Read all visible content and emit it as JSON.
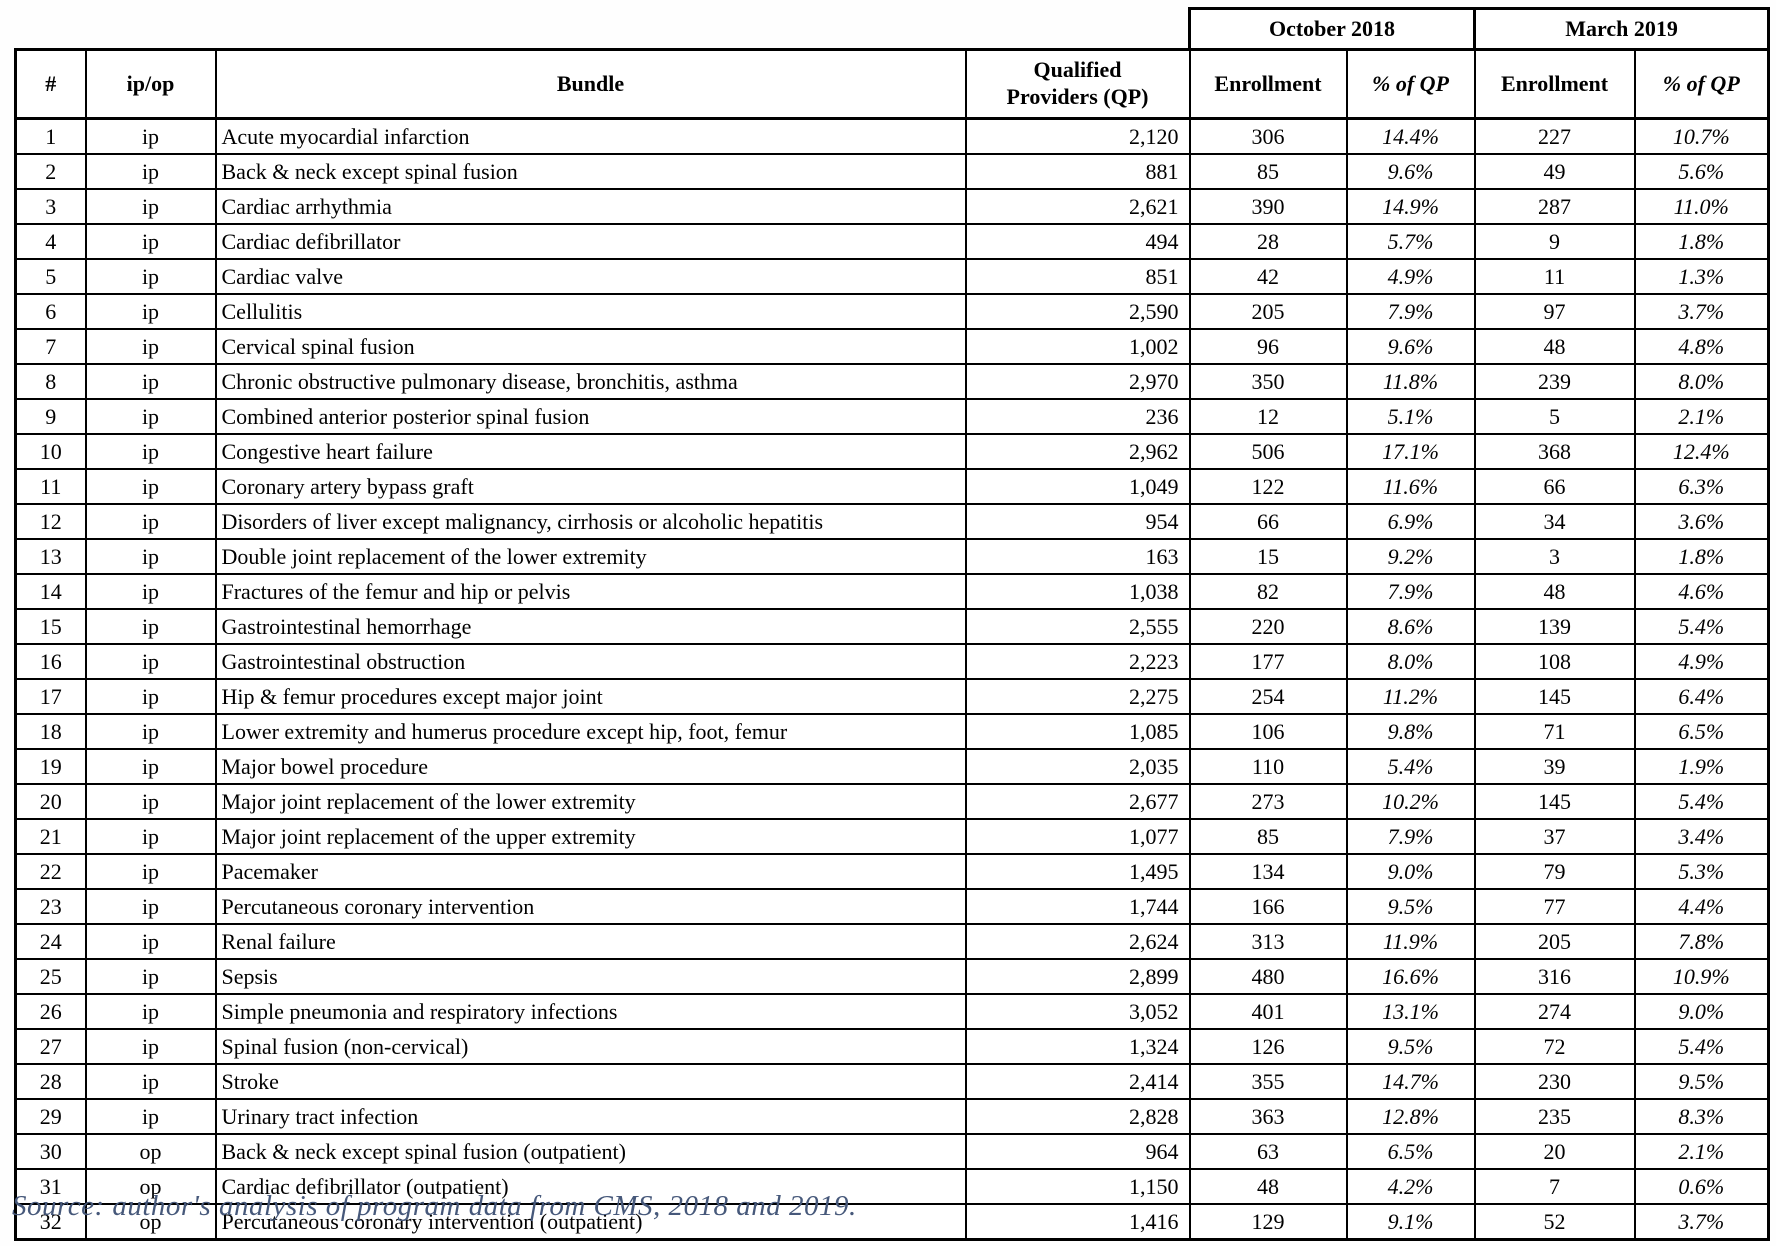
{
  "table": {
    "span_headers": {
      "october": "October 2018",
      "march": "March 2019"
    },
    "columns": {
      "num": "#",
      "ipop": "ip/op",
      "bundle": "Bundle",
      "qp_line1": "Qualified",
      "qp_line2": "Providers (QP)",
      "enrollment": "Enrollment",
      "pct_of_qp": "% of QP"
    },
    "rows": [
      {
        "num": "1",
        "ipop": "ip",
        "bundle": "Acute myocardial infarction",
        "qp": "2,120",
        "oct_enrollment": "306",
        "oct_pct": "14.4%",
        "mar_enrollment": "227",
        "mar_pct": "10.7%"
      },
      {
        "num": "2",
        "ipop": "ip",
        "bundle": "Back & neck except spinal fusion",
        "qp": "881",
        "oct_enrollment": "85",
        "oct_pct": "9.6%",
        "mar_enrollment": "49",
        "mar_pct": "5.6%"
      },
      {
        "num": "3",
        "ipop": "ip",
        "bundle": "Cardiac arrhythmia",
        "qp": "2,621",
        "oct_enrollment": "390",
        "oct_pct": "14.9%",
        "mar_enrollment": "287",
        "mar_pct": "11.0%"
      },
      {
        "num": "4",
        "ipop": "ip",
        "bundle": "Cardiac defibrillator",
        "qp": "494",
        "oct_enrollment": "28",
        "oct_pct": "5.7%",
        "mar_enrollment": "9",
        "mar_pct": "1.8%"
      },
      {
        "num": "5",
        "ipop": "ip",
        "bundle": "Cardiac valve",
        "qp": "851",
        "oct_enrollment": "42",
        "oct_pct": "4.9%",
        "mar_enrollment": "11",
        "mar_pct": "1.3%"
      },
      {
        "num": "6",
        "ipop": "ip",
        "bundle": "Cellulitis",
        "qp": "2,590",
        "oct_enrollment": "205",
        "oct_pct": "7.9%",
        "mar_enrollment": "97",
        "mar_pct": "3.7%"
      },
      {
        "num": "7",
        "ipop": "ip",
        "bundle": "Cervical spinal fusion",
        "qp": "1,002",
        "oct_enrollment": "96",
        "oct_pct": "9.6%",
        "mar_enrollment": "48",
        "mar_pct": "4.8%"
      },
      {
        "num": "8",
        "ipop": "ip",
        "bundle": "Chronic obstructive pulmonary disease, bronchitis, asthma",
        "qp": "2,970",
        "oct_enrollment": "350",
        "oct_pct": "11.8%",
        "mar_enrollment": "239",
        "mar_pct": "8.0%"
      },
      {
        "num": "9",
        "ipop": "ip",
        "bundle": "Combined anterior posterior spinal fusion",
        "qp": "236",
        "oct_enrollment": "12",
        "oct_pct": "5.1%",
        "mar_enrollment": "5",
        "mar_pct": "2.1%"
      },
      {
        "num": "10",
        "ipop": "ip",
        "bundle": "Congestive heart failure",
        "qp": "2,962",
        "oct_enrollment": "506",
        "oct_pct": "17.1%",
        "mar_enrollment": "368",
        "mar_pct": "12.4%"
      },
      {
        "num": "11",
        "ipop": "ip",
        "bundle": "Coronary artery bypass graft",
        "qp": "1,049",
        "oct_enrollment": "122",
        "oct_pct": "11.6%",
        "mar_enrollment": "66",
        "mar_pct": "6.3%"
      },
      {
        "num": "12",
        "ipop": "ip",
        "bundle": "Disorders of liver except malignancy, cirrhosis or alcoholic hepatitis",
        "qp": "954",
        "oct_enrollment": "66",
        "oct_pct": "6.9%",
        "mar_enrollment": "34",
        "mar_pct": "3.6%"
      },
      {
        "num": "13",
        "ipop": "ip",
        "bundle": "Double joint replacement of the lower extremity",
        "qp": "163",
        "oct_enrollment": "15",
        "oct_pct": "9.2%",
        "mar_enrollment": "3",
        "mar_pct": "1.8%"
      },
      {
        "num": "14",
        "ipop": "ip",
        "bundle": "Fractures of the femur and hip or pelvis",
        "qp": "1,038",
        "oct_enrollment": "82",
        "oct_pct": "7.9%",
        "mar_enrollment": "48",
        "mar_pct": "4.6%"
      },
      {
        "num": "15",
        "ipop": "ip",
        "bundle": "Gastrointestinal hemorrhage",
        "qp": "2,555",
        "oct_enrollment": "220",
        "oct_pct": "8.6%",
        "mar_enrollment": "139",
        "mar_pct": "5.4%"
      },
      {
        "num": "16",
        "ipop": "ip",
        "bundle": "Gastrointestinal obstruction",
        "qp": "2,223",
        "oct_enrollment": "177",
        "oct_pct": "8.0%",
        "mar_enrollment": "108",
        "mar_pct": "4.9%"
      },
      {
        "num": "17",
        "ipop": "ip",
        "bundle": "Hip & femur procedures except major joint",
        "qp": "2,275",
        "oct_enrollment": "254",
        "oct_pct": "11.2%",
        "mar_enrollment": "145",
        "mar_pct": "6.4%"
      },
      {
        "num": "18",
        "ipop": "ip",
        "bundle": "Lower extremity and humerus procedure except hip, foot, femur",
        "qp": "1,085",
        "oct_enrollment": "106",
        "oct_pct": "9.8%",
        "mar_enrollment": "71",
        "mar_pct": "6.5%"
      },
      {
        "num": "19",
        "ipop": "ip",
        "bundle": "Major bowel procedure",
        "qp": "2,035",
        "oct_enrollment": "110",
        "oct_pct": "5.4%",
        "mar_enrollment": "39",
        "mar_pct": "1.9%"
      },
      {
        "num": "20",
        "ipop": "ip",
        "bundle": "Major joint replacement of the lower extremity",
        "qp": "2,677",
        "oct_enrollment": "273",
        "oct_pct": "10.2%",
        "mar_enrollment": "145",
        "mar_pct": "5.4%"
      },
      {
        "num": "21",
        "ipop": "ip",
        "bundle": "Major joint replacement of the upper extremity",
        "qp": "1,077",
        "oct_enrollment": "85",
        "oct_pct": "7.9%",
        "mar_enrollment": "37",
        "mar_pct": "3.4%"
      },
      {
        "num": "22",
        "ipop": "ip",
        "bundle": "Pacemaker",
        "qp": "1,495",
        "oct_enrollment": "134",
        "oct_pct": "9.0%",
        "mar_enrollment": "79",
        "mar_pct": "5.3%"
      },
      {
        "num": "23",
        "ipop": "ip",
        "bundle": "Percutaneous coronary intervention",
        "qp": "1,744",
        "oct_enrollment": "166",
        "oct_pct": "9.5%",
        "mar_enrollment": "77",
        "mar_pct": "4.4%"
      },
      {
        "num": "24",
        "ipop": "ip",
        "bundle": "Renal failure",
        "qp": "2,624",
        "oct_enrollment": "313",
        "oct_pct": "11.9%",
        "mar_enrollment": "205",
        "mar_pct": "7.8%"
      },
      {
        "num": "25",
        "ipop": "ip",
        "bundle": "Sepsis",
        "qp": "2,899",
        "oct_enrollment": "480",
        "oct_pct": "16.6%",
        "mar_enrollment": "316",
        "mar_pct": "10.9%"
      },
      {
        "num": "26",
        "ipop": "ip",
        "bundle": "Simple pneumonia and respiratory infections",
        "qp": "3,052",
        "oct_enrollment": "401",
        "oct_pct": "13.1%",
        "mar_enrollment": "274",
        "mar_pct": "9.0%"
      },
      {
        "num": "27",
        "ipop": "ip",
        "bundle": "Spinal fusion (non-cervical)",
        "qp": "1,324",
        "oct_enrollment": "126",
        "oct_pct": "9.5%",
        "mar_enrollment": "72",
        "mar_pct": "5.4%"
      },
      {
        "num": "28",
        "ipop": "ip",
        "bundle": "Stroke",
        "qp": "2,414",
        "oct_enrollment": "355",
        "oct_pct": "14.7%",
        "mar_enrollment": "230",
        "mar_pct": "9.5%"
      },
      {
        "num": "29",
        "ipop": "ip",
        "bundle": "Urinary tract infection",
        "qp": "2,828",
        "oct_enrollment": "363",
        "oct_pct": "12.8%",
        "mar_enrollment": "235",
        "mar_pct": "8.3%"
      },
      {
        "num": "30",
        "ipop": "op",
        "bundle": "Back & neck except spinal fusion (outpatient)",
        "qp": "964",
        "oct_enrollment": "63",
        "oct_pct": "6.5%",
        "mar_enrollment": "20",
        "mar_pct": "2.1%"
      },
      {
        "num": "31",
        "ipop": "op",
        "bundle": "Cardiac defibrillator (outpatient)",
        "qp": "1,150",
        "oct_enrollment": "48",
        "oct_pct": "4.2%",
        "mar_enrollment": "7",
        "mar_pct": "0.6%"
      },
      {
        "num": "32",
        "ipop": "op",
        "bundle": "Percutaneous coronary intervention (outpatient)",
        "qp": "1,416",
        "oct_enrollment": "129",
        "oct_pct": "9.1%",
        "mar_enrollment": "52",
        "mar_pct": "3.7%"
      }
    ]
  },
  "footer": {
    "source_note": "Source: author's analysis of program data from CMS, 2018 and 2019."
  },
  "colors": {
    "border": "#000000",
    "text": "#000000",
    "source_text": "#46587a",
    "background": "#ffffff"
  }
}
